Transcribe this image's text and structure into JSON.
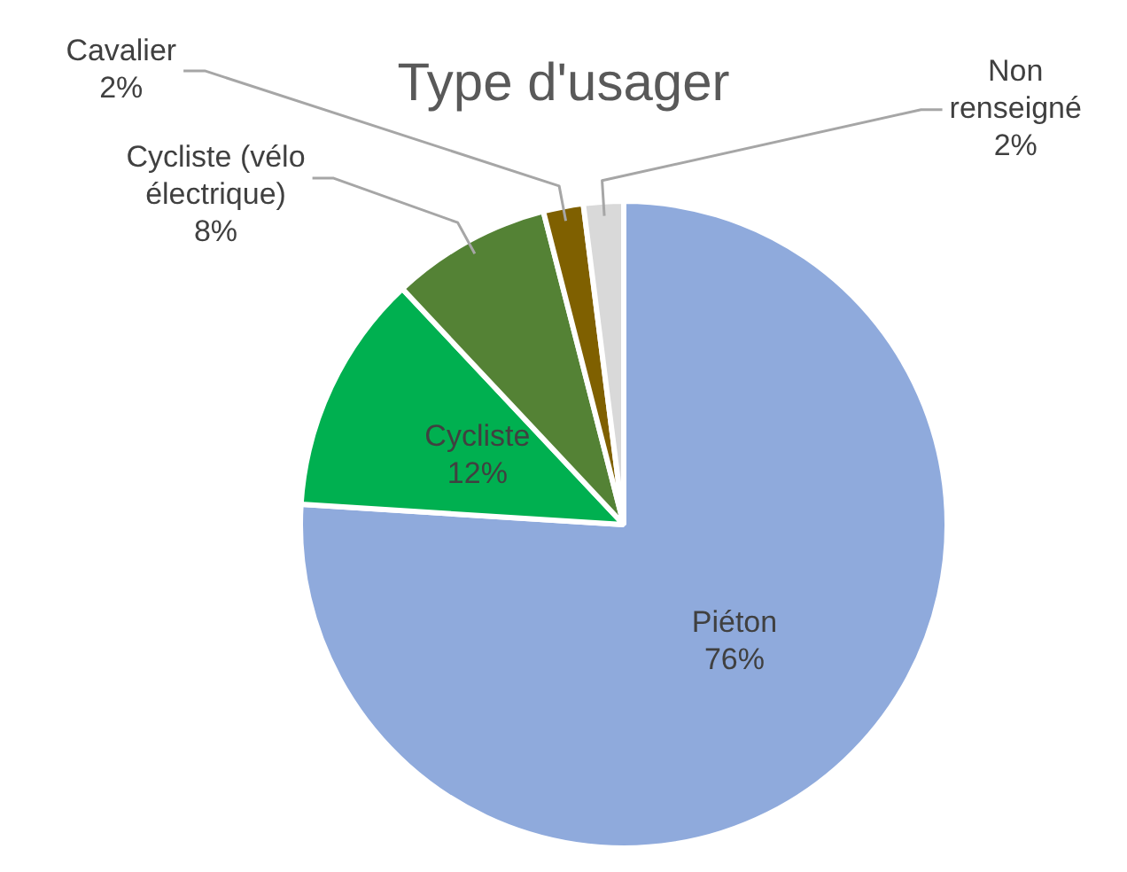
{
  "chart_data": {
    "type": "pie",
    "title": "Type d'usager",
    "categories": [
      "Piéton",
      "Cycliste",
      "Cycliste (vélo électrique)",
      "Cavalier",
      "Non renseigné"
    ],
    "values": [
      76,
      12,
      8,
      2,
      2
    ],
    "colors": [
      "#8faadc",
      "#00b050",
      "#548235",
      "#7f6000",
      "#d9d9d9"
    ],
    "value_labels": [
      "76%",
      "12%",
      "8%",
      "2%",
      "2%"
    ],
    "legend": false
  }
}
